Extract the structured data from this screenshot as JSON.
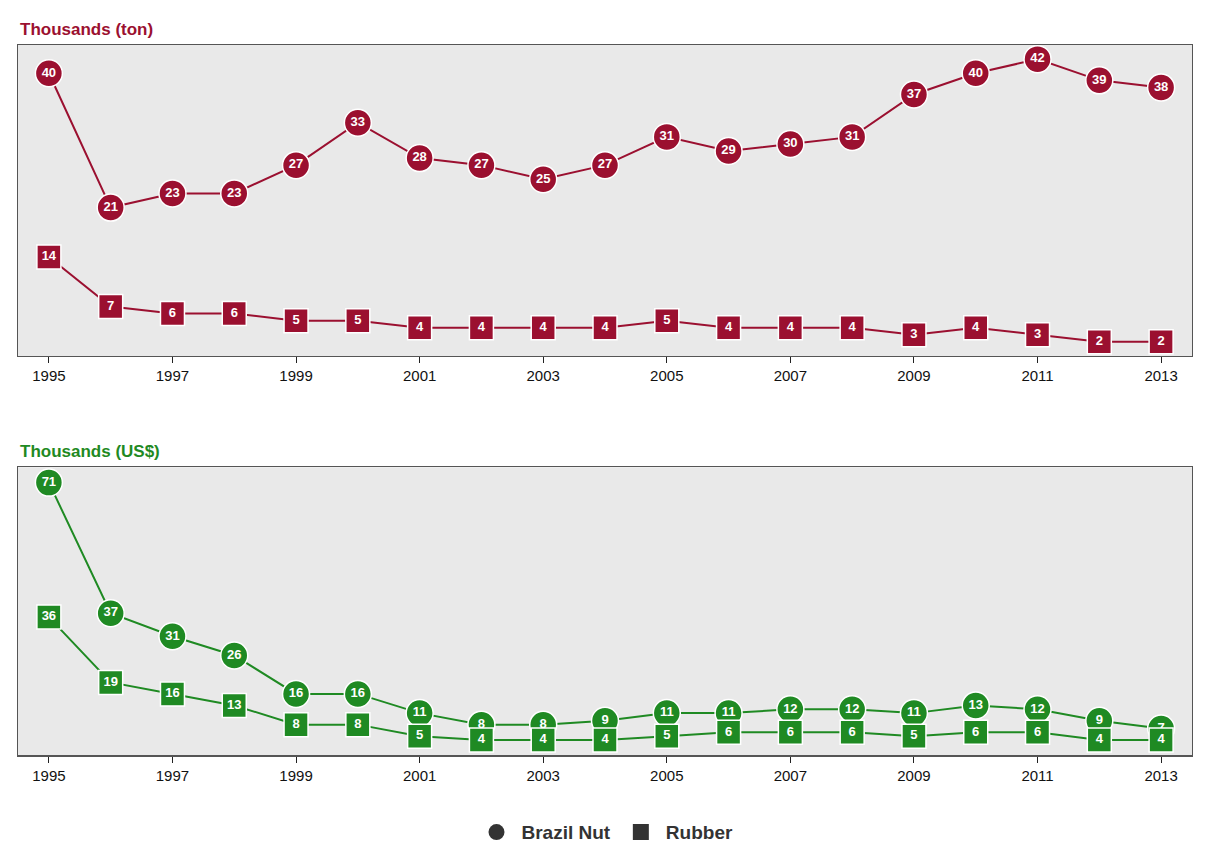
{
  "chart_data": [
    {
      "type": "line",
      "title": "Thousands (ton)",
      "x": [
        1995,
        1996,
        1997,
        1998,
        1999,
        2000,
        2001,
        2002,
        2003,
        2004,
        2005,
        2006,
        2007,
        2008,
        2009,
        2010,
        2011,
        2012,
        2013
      ],
      "series": [
        {
          "name": "Brazil Nut",
          "color": "#9b1030",
          "marker": "circle",
          "values": [
            40,
            21,
            23,
            23,
            27,
            33,
            28,
            27,
            25,
            27,
            31,
            29,
            30,
            31,
            37,
            40,
            42,
            39,
            38
          ]
        },
        {
          "name": "Rubber",
          "color": "#9b1030",
          "marker": "square",
          "values": [
            14,
            7,
            6,
            6,
            5,
            5,
            4,
            4,
            4,
            4,
            5,
            4,
            4,
            4,
            3,
            4,
            3,
            2,
            2
          ]
        }
      ],
      "xlim": [
        1994.5,
        2013.5
      ],
      "xticks": [
        1995,
        1997,
        1999,
        2001,
        2003,
        2005,
        2007,
        2009,
        2011,
        2013
      ],
      "ylim": [
        0,
        44
      ],
      "data_labels": true,
      "tick_labels": "x",
      "grid": false
    },
    {
      "type": "line",
      "title": "Thousands (US$)",
      "x": [
        1995,
        1996,
        1997,
        1998,
        1999,
        2000,
        2001,
        2002,
        2003,
        2004,
        2005,
        2006,
        2007,
        2008,
        2009,
        2010,
        2011,
        2012,
        2013
      ],
      "series": [
        {
          "name": "Brazil Nut",
          "color": "#1f8a23",
          "marker": "circle",
          "values": [
            71,
            37,
            31,
            26,
            16,
            16,
            11,
            8,
            8,
            9,
            11,
            11,
            12,
            12,
            11,
            13,
            12,
            9,
            7
          ]
        },
        {
          "name": "Rubber",
          "color": "#1f8a23",
          "marker": "square",
          "values": [
            36,
            19,
            16,
            13,
            8,
            8,
            5,
            4,
            4,
            4,
            5,
            6,
            6,
            6,
            5,
            6,
            6,
            4,
            4
          ]
        }
      ],
      "xlim": [
        1994.5,
        2013.5
      ],
      "xticks": [
        1995,
        1997,
        1999,
        2001,
        2003,
        2005,
        2007,
        2009,
        2011,
        2013
      ],
      "ylim": [
        0,
        75
      ],
      "data_labels": true,
      "tick_labels": "x",
      "grid": false,
      "legend": "bottom"
    }
  ]
}
